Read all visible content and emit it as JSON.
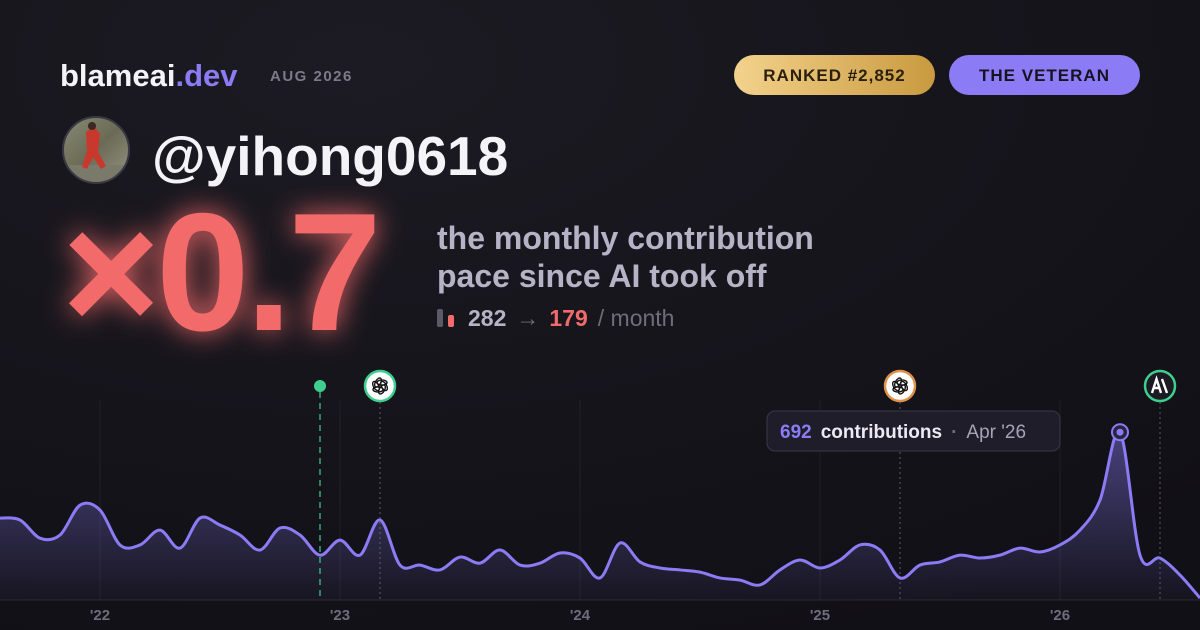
{
  "brand": {
    "name": "blameai",
    "tld": ".dev",
    "date": "AUG 2026"
  },
  "badges": [
    "RANKED #2,852",
    "THE VETERAN"
  ],
  "user": {
    "handle": "@yihong0618"
  },
  "multiplier": "×0.7",
  "description": [
    "the monthly contribution",
    "pace since AI took off"
  ],
  "pace": {
    "before": 282,
    "arrow": "→",
    "after": 179,
    "unit": "/ month"
  },
  "chart_data": {
    "type": "area",
    "color": "#8b7cf6",
    "x": [
      "2021-08",
      "2021-09",
      "2021-10",
      "2021-11",
      "2021-12",
      "2022-01",
      "2022-02",
      "2022-03",
      "2022-04",
      "2022-05",
      "2022-06",
      "2022-07",
      "2022-08",
      "2022-09",
      "2022-10",
      "2022-11",
      "2022-12",
      "2023-01",
      "2023-02",
      "2023-03",
      "2023-04",
      "2023-05",
      "2023-06",
      "2023-07",
      "2023-08",
      "2023-09",
      "2023-10",
      "2023-11",
      "2023-12",
      "2024-01",
      "2024-02",
      "2024-03",
      "2024-04",
      "2024-05",
      "2024-06",
      "2024-07",
      "2024-08",
      "2024-09",
      "2024-10",
      "2024-11",
      "2024-12",
      "2025-01",
      "2025-02",
      "2025-03",
      "2025-04",
      "2025-05",
      "2025-06",
      "2025-07",
      "2025-08",
      "2025-09",
      "2025-10",
      "2025-11",
      "2025-12",
      "2026-01",
      "2026-02",
      "2026-03",
      "2026-04",
      "2026-05",
      "2026-06",
      "2026-07",
      "2026-08"
    ],
    "values": [
      338,
      330,
      255,
      268,
      391,
      371,
      227,
      227,
      288,
      214,
      338,
      309,
      268,
      206,
      297,
      268,
      185,
      247,
      185,
      330,
      144,
      144,
      124,
      177,
      152,
      206,
      144,
      152,
      194,
      173,
      91,
      235,
      157,
      132,
      124,
      115,
      91,
      82,
      62,
      124,
      165,
      132,
      165,
      227,
      206,
      91,
      144,
      157,
      185,
      173,
      185,
      214,
      198,
      227,
      288,
      412,
      692,
      185,
      173,
      103,
      8
    ],
    "xlim": [
      "2021-08",
      "2026-08"
    ],
    "ylim": [
      0,
      800
    ],
    "xticks": [
      {
        "value": "2022-01",
        "label": "'22"
      },
      {
        "value": "2023-01",
        "label": "'23"
      },
      {
        "value": "2024-01",
        "label": "'24"
      },
      {
        "value": "2025-01",
        "label": "'25"
      },
      {
        "value": "2026-01",
        "label": "'26"
      }
    ],
    "grid": true,
    "events": [
      "2022-12",
      "2023-03",
      "2025-05",
      "2026-06"
    ],
    "tooltip": {
      "x": "2026-04",
      "unit": "contributions",
      "label": "Apr '26"
    }
  }
}
